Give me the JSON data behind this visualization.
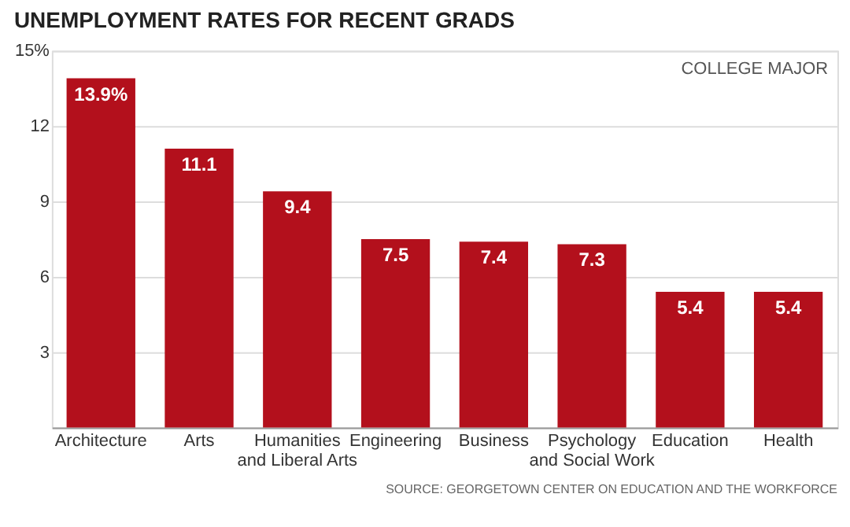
{
  "chart_data": {
    "type": "bar",
    "title": "UNEMPLOYMENT RATES FOR RECENT GRADS",
    "categories": [
      "Architecture",
      "Arts",
      "Humanities and Liberal Arts",
      "Engineering",
      "Business",
      "Psychology and Social Work",
      "Education",
      "Health"
    ],
    "values": [
      13.9,
      11.1,
      9.4,
      7.5,
      7.4,
      7.3,
      5.4,
      5.4
    ],
    "value_labels": [
      "13.9%",
      "11.1",
      "9.4",
      "7.5",
      "7.4",
      "7.3",
      "5.4",
      "5.4"
    ],
    "color": "#b3101c",
    "ylim": [
      0,
      15
    ],
    "yticks": [
      {
        "value": 0,
        "label": null
      },
      3,
      6,
      9,
      12,
      {
        "value": 15,
        "label": "15%"
      }
    ],
    "grid": "y",
    "annotations": [
      "COLLEGE MAJOR",
      "SOURCE: GEORGETOWN CENTER ON EDUCATION AND THE WORKFORCE"
    ]
  }
}
